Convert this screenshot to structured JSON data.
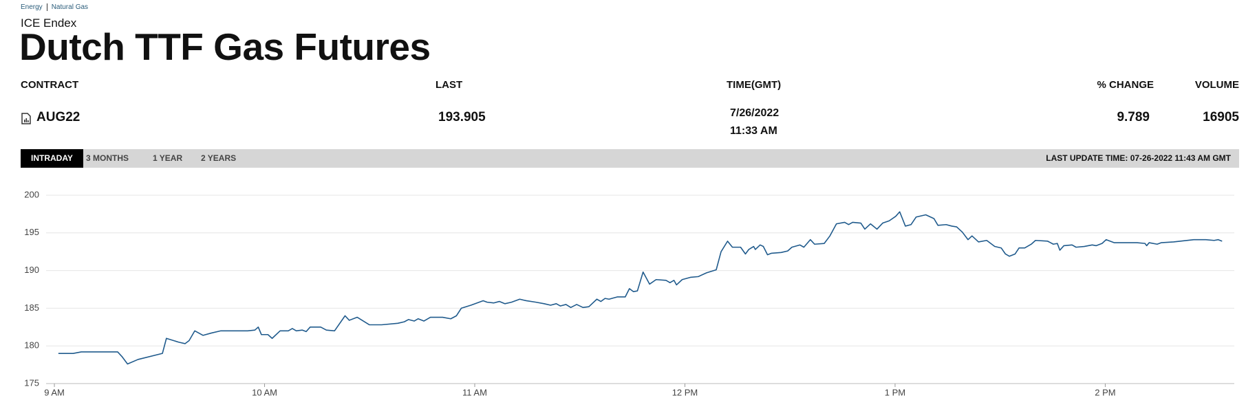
{
  "header": {
    "breadcrumb": [
      "Energy",
      "Natural Gas"
    ],
    "exchange": "ICE Endex",
    "title": "Dutch TTF Gas Futures"
  },
  "quote": {
    "columns": [
      "CONTRACT",
      "LAST",
      "TIME(GMT)",
      "% CHANGE",
      "VOLUME"
    ],
    "contract": "AUG22",
    "last": "193.905",
    "date": "7/26/2022",
    "time": "11:33 AM",
    "change": "9.789",
    "volume": "16905"
  },
  "tabs": {
    "items": [
      "INTRADAY",
      "3 MONTHS",
      "1 YEAR",
      "2 YEARS"
    ],
    "active": 0,
    "last_update": "LAST UPDATE TIME: 07-26-2022 11:43 AM GMT"
  },
  "chart_data": {
    "type": "line",
    "color": "#1f5a8c",
    "grid": true,
    "xlim": [
      8.954,
      14.614
    ],
    "ylim": [
      175,
      200
    ],
    "xticks": [
      {
        "value": 9,
        "label": "9 AM"
      },
      {
        "value": 10,
        "label": "10 AM"
      },
      {
        "value": 11,
        "label": "11 AM"
      },
      {
        "value": 12,
        "label": "12 PM"
      },
      {
        "value": 13,
        "label": "1 PM"
      },
      {
        "value": 14,
        "label": "2 PM"
      }
    ],
    "yticks": [
      175,
      180,
      185,
      190,
      195,
      200
    ],
    "x": [
      9.019,
      9.089,
      9.128,
      9.301,
      9.321,
      9.348,
      9.398,
      9.514,
      9.533,
      9.591,
      9.622,
      9.641,
      9.668,
      9.707,
      9.746,
      9.792,
      9.92,
      9.954,
      9.97,
      9.985,
      10.016,
      10.036,
      10.074,
      10.113,
      10.132,
      10.151,
      10.179,
      10.198,
      10.217,
      10.267,
      10.294,
      10.333,
      10.383,
      10.403,
      10.441,
      10.499,
      10.557,
      10.634,
      10.665,
      10.685,
      10.712,
      10.731,
      10.758,
      10.789,
      10.847,
      10.886,
      10.913,
      10.936,
      10.982,
      11.04,
      11.059,
      11.09,
      11.117,
      11.144,
      11.175,
      11.214,
      11.245,
      11.291,
      11.33,
      11.361,
      11.388,
      11.407,
      11.434,
      11.457,
      11.485,
      11.515,
      11.543,
      11.581,
      11.6,
      11.62,
      11.639,
      11.678,
      11.716,
      11.736,
      11.755,
      11.774,
      11.801,
      11.832,
      11.863,
      11.91,
      11.929,
      11.948,
      11.96,
      11.987,
      12.026,
      12.064,
      12.103,
      12.149,
      12.172,
      12.203,
      12.226,
      12.265,
      12.288,
      12.304,
      12.327,
      12.335,
      12.358,
      12.373,
      12.393,
      12.412,
      12.458,
      12.489,
      12.509,
      12.547,
      12.566,
      12.597,
      12.617,
      12.663,
      12.69,
      12.721,
      12.76,
      12.779,
      12.798,
      12.837,
      12.856,
      12.883,
      12.914,
      12.941,
      12.972,
      13.003,
      13.022,
      13.049,
      13.076,
      13.1,
      13.146,
      13.185,
      13.204,
      13.243,
      13.27,
      13.293,
      13.32,
      13.347,
      13.366,
      13.397,
      13.436,
      13.474,
      13.505,
      13.525,
      13.544,
      13.571,
      13.59,
      13.617,
      13.648,
      13.668,
      13.726,
      13.753,
      13.772,
      13.784,
      13.803,
      13.842,
      13.861,
      13.9,
      13.938,
      13.957,
      13.985,
      14.004,
      14.042,
      14.073,
      14.151,
      14.189,
      14.197,
      14.209,
      14.247,
      14.267,
      14.325,
      14.421,
      14.479,
      14.518,
      14.537,
      14.556
    ],
    "values": [
      179,
      179,
      179.2,
      179.2,
      178.6,
      177.6,
      178.2,
      179,
      181,
      180.5,
      180.3,
      180.7,
      182,
      181.4,
      181.7,
      182,
      182,
      182.1,
      182.5,
      181.5,
      181.5,
      181,
      182,
      182,
      182.3,
      182,
      182.1,
      181.9,
      182.5,
      182.5,
      182.1,
      182,
      184,
      183.4,
      183.8,
      182.8,
      182.8,
      183,
      183.2,
      183.5,
      183.3,
      183.6,
      183.3,
      183.8,
      183.8,
      183.6,
      184,
      185,
      185.4,
      186,
      185.8,
      185.7,
      185.9,
      185.6,
      185.8,
      186.2,
      186,
      185.8,
      185.6,
      185.4,
      185.6,
      185.3,
      185.5,
      185.1,
      185.5,
      185.1,
      185.2,
      186.2,
      185.9,
      186.3,
      186.2,
      186.5,
      186.5,
      187.6,
      187.2,
      187.3,
      189.8,
      188.2,
      188.8,
      188.7,
      188.4,
      188.7,
      188.1,
      188.8,
      189.1,
      189.2,
      189.7,
      190.1,
      192.5,
      193.9,
      193.1,
      193.1,
      192.2,
      192.8,
      193.2,
      192.8,
      193.4,
      193.2,
      192.1,
      192.3,
      192.4,
      192.6,
      193.1,
      193.4,
      193.1,
      194.1,
      193.5,
      193.6,
      194.6,
      196.2,
      196.4,
      196.1,
      196.4,
      196.3,
      195.5,
      196.2,
      195.5,
      196.3,
      196.6,
      197.2,
      197.8,
      195.9,
      196.1,
      197.1,
      197.4,
      196.9,
      196,
      196.1,
      195.9,
      195.8,
      195.1,
      194.1,
      194.6,
      193.8,
      194,
      193.2,
      193,
      192.2,
      191.9,
      192.2,
      193,
      193,
      193.5,
      194,
      193.9,
      193.5,
      193.6,
      192.7,
      193.3,
      193.4,
      193.1,
      193.2,
      193.4,
      193.3,
      193.6,
      194.1,
      193.7,
      193.7,
      193.7,
      193.6,
      193.3,
      193.7,
      193.5,
      193.7,
      193.8,
      194.1,
      194.1,
      194,
      194.1,
      193.9
    ]
  }
}
